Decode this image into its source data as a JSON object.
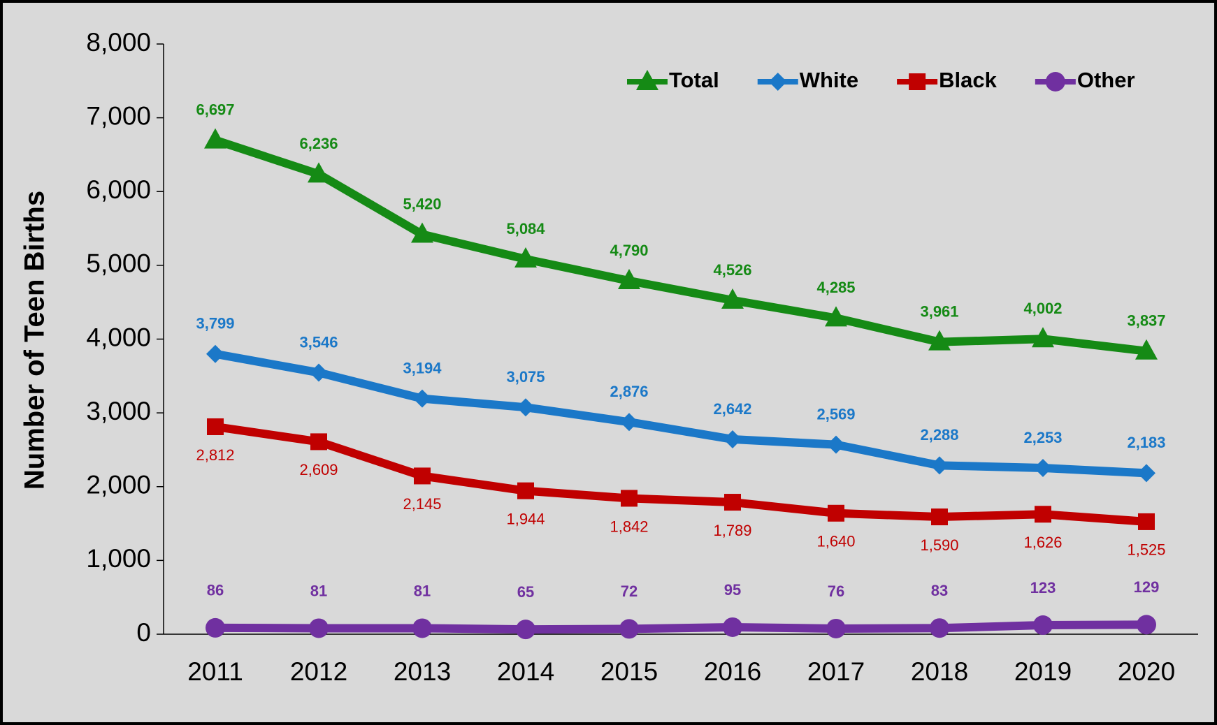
{
  "chart_data": {
    "type": "line",
    "y_label": "Number of Teen Births",
    "categories": [
      "2011",
      "2012",
      "2013",
      "2014",
      "2015",
      "2016",
      "2017",
      "2018",
      "2019",
      "2020"
    ],
    "ylim": [
      0,
      8000
    ],
    "yticks": [
      0,
      {
        "value": 1000,
        "label": "1,000"
      },
      {
        "value": 2000,
        "label": "2,000"
      },
      {
        "value": 3000,
        "label": "3,000"
      },
      {
        "value": 4000,
        "label": "4,000"
      },
      {
        "value": 5000,
        "label": "5,000"
      },
      {
        "value": 6000,
        "label": "6,000"
      },
      {
        "value": 7000,
        "label": "7,000"
      },
      {
        "value": 8000,
        "label": "8,000"
      }
    ],
    "grid": false,
    "legend": "top-right",
    "series": [
      {
        "name": "Total",
        "color": "#158a15",
        "marker": "triangle",
        "label_position": "above",
        "label_bold": true,
        "values": [
          6697,
          6236,
          5420,
          5084,
          4790,
          4526,
          4285,
          3961,
          4002,
          3837
        ],
        "value_labels": [
          "6,697",
          "6,236",
          "5,420",
          "5,084",
          "4,790",
          "4,526",
          "4,285",
          "3,961",
          "4,002",
          "3,837"
        ]
      },
      {
        "name": "White",
        "color": "#1b78c8",
        "marker": "diamond",
        "label_position": "above",
        "label_bold": true,
        "values": [
          3799,
          3546,
          3194,
          3075,
          2876,
          2642,
          2569,
          2288,
          2253,
          2183
        ],
        "value_labels": [
          "3,799",
          "3,546",
          "3,194",
          "3,075",
          "2,876",
          "2,642",
          "2,569",
          "2,288",
          "2,253",
          "2,183"
        ]
      },
      {
        "name": "Black",
        "color": "#c00000",
        "marker": "square",
        "label_position": "below",
        "label_bold": false,
        "values": [
          2812,
          2609,
          2145,
          1944,
          1842,
          1789,
          1640,
          1590,
          1626,
          1525
        ],
        "value_labels": [
          "2,812",
          "2,609",
          "2,145",
          "1,944",
          "1,842",
          "1,789",
          "1,640",
          "1,590",
          "1,626",
          "1,525"
        ]
      },
      {
        "name": "Other",
        "color": "#7030a0",
        "marker": "circle",
        "label_position": "above",
        "label_bold": true,
        "values": [
          86,
          81,
          81,
          65,
          72,
          95,
          76,
          83,
          123,
          129
        ]
      }
    ]
  }
}
